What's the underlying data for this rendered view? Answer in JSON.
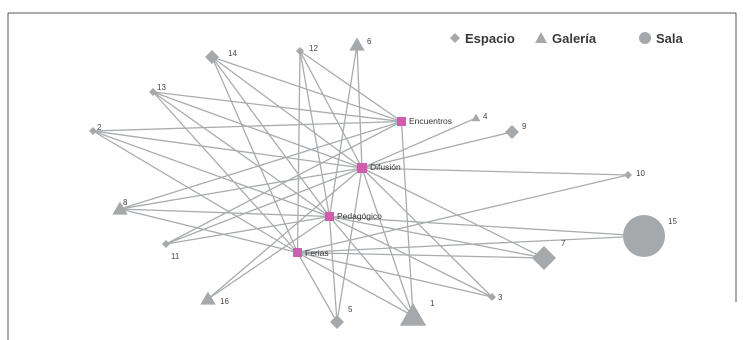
{
  "colors": {
    "frame": "#555555",
    "edge": "#a9acae",
    "node": "#a6a9ab",
    "hub": "#cf5fae"
  },
  "legend": {
    "espacio": {
      "label": "Espacio",
      "shape": "diamond"
    },
    "galeria": {
      "label": "Galería",
      "shape": "triangle"
    },
    "sala": {
      "label": "Sala",
      "shape": "circle"
    }
  },
  "hubs": {
    "encuentros": "Encuentros",
    "difusion": "Difusión",
    "pedagogico": "Pedagógico",
    "ferias": "Ferias"
  },
  "nodes": [
    {
      "id": "1",
      "label": "1",
      "type": "galeria",
      "size": "large",
      "hubs": [
        "encuentros",
        "difusion",
        "pedagogico",
        "ferias"
      ]
    },
    {
      "id": "2",
      "label": "2",
      "type": "espacio",
      "size": "small",
      "hubs": [
        "encuentros",
        "difusion",
        "pedagogico",
        "ferias"
      ]
    },
    {
      "id": "3",
      "label": "3",
      "type": "espacio",
      "size": "small",
      "hubs": [
        "difusion",
        "pedagogico",
        "ferias"
      ]
    },
    {
      "id": "4",
      "label": "4",
      "type": "galeria",
      "size": "small",
      "hubs": [
        "difusion"
      ]
    },
    {
      "id": "5",
      "label": "5",
      "type": "espacio",
      "size": "medium",
      "hubs": [
        "difusion",
        "pedagogico",
        "ferias"
      ]
    },
    {
      "id": "6",
      "label": "6",
      "type": "galeria",
      "size": "medium",
      "hubs": [
        "difusion",
        "pedagogico"
      ]
    },
    {
      "id": "7",
      "label": "7",
      "type": "espacio",
      "size": "large",
      "hubs": [
        "difusion",
        "pedagogico",
        "ferias"
      ]
    },
    {
      "id": "8",
      "label": "8",
      "type": "galeria",
      "size": "medium",
      "hubs": [
        "encuentros",
        "difusion",
        "pedagogico",
        "ferias"
      ]
    },
    {
      "id": "9",
      "label": "9",
      "type": "espacio",
      "size": "medium",
      "hubs": [
        "difusion"
      ]
    },
    {
      "id": "10",
      "label": "10",
      "type": "espacio",
      "size": "small",
      "hubs": [
        "difusion",
        "ferias"
      ]
    },
    {
      "id": "11",
      "label": "11",
      "type": "espacio",
      "size": "small",
      "hubs": [
        "encuentros",
        "difusion",
        "pedagogico"
      ]
    },
    {
      "id": "12",
      "label": "12",
      "type": "espacio",
      "size": "small",
      "hubs": [
        "encuentros",
        "difusion",
        "pedagogico",
        "ferias"
      ]
    },
    {
      "id": "13",
      "label": "13",
      "type": "espacio",
      "size": "small",
      "hubs": [
        "encuentros",
        "difusion",
        "pedagogico",
        "ferias"
      ]
    },
    {
      "id": "14",
      "label": "14",
      "type": "espacio",
      "size": "medium",
      "hubs": [
        "encuentros",
        "difusion",
        "pedagogico",
        "ferias"
      ]
    },
    {
      "id": "15",
      "label": "15",
      "type": "sala",
      "size": "large",
      "hubs": [
        "pedagogico",
        "ferias"
      ]
    },
    {
      "id": "16",
      "label": "16",
      "type": "galeria",
      "size": "medium",
      "hubs": [
        "difusion",
        "pedagogico"
      ]
    }
  ]
}
